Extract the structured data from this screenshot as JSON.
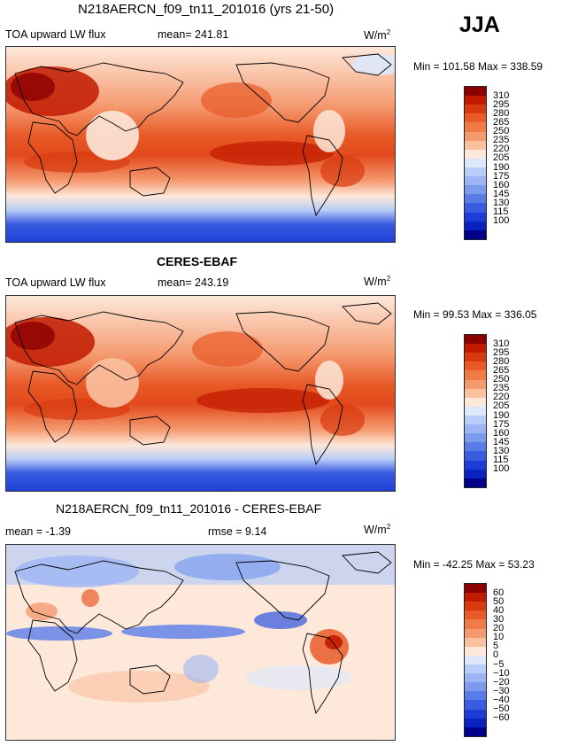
{
  "season": "JJA",
  "units": "W/m",
  "units_sup": "2",
  "panels": [
    {
      "title": "N218AERCN_f09_tn11_201016 (yrs 21-50)",
      "variable": "TOA upward LW flux",
      "stat1": "mean= 241.81",
      "stat2": "",
      "minmax": "Min = 101.58 Max = 338.59"
    },
    {
      "title": "CERES-EBAF",
      "variable": "TOA upward LW flux",
      "stat1": "mean= 243.19",
      "stat2": "",
      "minmax": "Min =  99.53 Max = 336.05"
    },
    {
      "title": "N218AERCN_f09_tn11_201016 - CERES-EBAF",
      "variable": "",
      "stat1": "mean =  -1.39",
      "stat2": "rmse =   9.14",
      "minmax": "Min = -42.25 Max =  53.23"
    }
  ],
  "colorbar_abs": {
    "labels": [
      "310",
      "295",
      "280",
      "265",
      "250",
      "235",
      "220",
      "205",
      "190",
      "175",
      "160",
      "145",
      "130",
      "115",
      "100"
    ],
    "colors": [
      "#8b0000",
      "#c11a00",
      "#d83a10",
      "#e85a28",
      "#f07a48",
      "#f59a70",
      "#fac0a0",
      "#fde8da",
      "#dde8fa",
      "#b8cdf7",
      "#9db5f4",
      "#7c9bef",
      "#5b7ce8",
      "#3a5ce0",
      "#1d3ed6",
      "#0a22c0",
      "#00008b"
    ]
  },
  "colorbar_diff": {
    "labels": [
      "60",
      "50",
      "40",
      "30",
      "20",
      "10",
      "5",
      "0",
      "−5",
      "−10",
      "−20",
      "−30",
      "−40",
      "−50",
      "−60"
    ],
    "colors": [
      "#8b0000",
      "#c11a00",
      "#d83a10",
      "#e85a28",
      "#f07a48",
      "#f59a70",
      "#fac0a0",
      "#fde8da",
      "#dde8fa",
      "#b8cdf7",
      "#9db5f4",
      "#7c9bef",
      "#5b7ce8",
      "#3a5ce0",
      "#1d3ed6",
      "#0a22c0",
      "#00008b"
    ]
  }
}
